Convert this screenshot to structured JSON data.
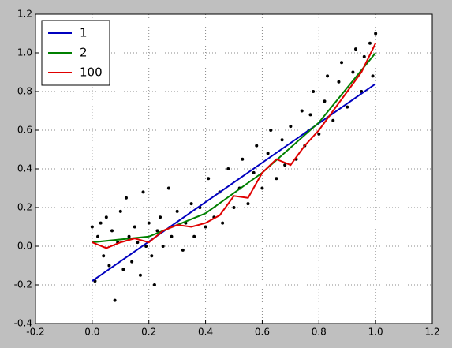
{
  "chart_data": {
    "type": "scatter",
    "xlim": [
      -0.2,
      1.2
    ],
    "xticks": [
      -0.2,
      {
        "value": 0,
        "label": "0.0"
      },
      0.2,
      0.4,
      0.6,
      0.8,
      {
        "value": 1,
        "label": "1.0"
      },
      1.2
    ],
    "ylim": [
      -0.4,
      1.2
    ],
    "yticks": [
      -0.4,
      -0.2,
      {
        "value": 0,
        "label": "0.0"
      },
      0.2,
      0.4,
      0.6,
      0.8,
      {
        "value": 1,
        "label": "1.0"
      },
      1.2
    ],
    "grid": true,
    "legend": "upper-left",
    "points": {
      "color": "#000000",
      "x": [
        0.0,
        0.01,
        0.02,
        0.03,
        0.04,
        0.05,
        0.06,
        0.07,
        0.08,
        0.09,
        0.1,
        0.11,
        0.12,
        0.13,
        0.14,
        0.15,
        0.16,
        0.17,
        0.18,
        0.19,
        0.2,
        0.21,
        0.22,
        0.23,
        0.24,
        0.25,
        0.27,
        0.28,
        0.3,
        0.32,
        0.33,
        0.35,
        0.36,
        0.38,
        0.4,
        0.41,
        0.43,
        0.45,
        0.46,
        0.48,
        0.5,
        0.52,
        0.53,
        0.55,
        0.57,
        0.58,
        0.6,
        0.62,
        0.63,
        0.65,
        0.67,
        0.68,
        0.7,
        0.72,
        0.74,
        0.75,
        0.77,
        0.78,
        0.8,
        0.82,
        0.83,
        0.85,
        0.87,
        0.88,
        0.9,
        0.92,
        0.93,
        0.95,
        0.96,
        0.98,
        0.99,
        1.0
      ],
      "values": [
        0.1,
        -0.18,
        0.05,
        0.12,
        -0.05,
        0.15,
        -0.1,
        0.08,
        -0.28,
        0.02,
        0.18,
        -0.12,
        0.25,
        0.05,
        -0.08,
        0.1,
        0.02,
        -0.15,
        0.28,
        0.0,
        0.12,
        -0.05,
        -0.2,
        0.08,
        0.15,
        0.0,
        0.3,
        0.05,
        0.18,
        -0.02,
        0.12,
        0.22,
        0.05,
        0.2,
        0.1,
        0.35,
        0.15,
        0.28,
        0.12,
        0.4,
        0.2,
        0.3,
        0.45,
        0.22,
        0.38,
        0.52,
        0.3,
        0.48,
        0.6,
        0.35,
        0.55,
        0.42,
        0.62,
        0.45,
        0.7,
        0.52,
        0.68,
        0.8,
        0.58,
        0.75,
        0.88,
        0.65,
        0.85,
        0.95,
        0.72,
        0.9,
        1.02,
        0.8,
        0.98,
        1.05,
        0.88,
        1.1
      ]
    },
    "series": [
      {
        "name": "1",
        "color": "#0000bf",
        "x": [
          0,
          1
        ],
        "values": [
          -0.18,
          0.84
        ]
      },
      {
        "name": "2",
        "color": "#008000",
        "x": [
          0,
          0.2,
          0.4,
          0.6,
          0.8,
          1
        ],
        "values": [
          0.02,
          0.05,
          0.17,
          0.38,
          0.64,
          1.0
        ]
      },
      {
        "name": "100",
        "color": "#e00000",
        "x": [
          0,
          0.05,
          0.1,
          0.15,
          0.2,
          0.25,
          0.3,
          0.35,
          0.4,
          0.45,
          0.5,
          0.55,
          0.6,
          0.65,
          0.7,
          0.75,
          0.8,
          0.85,
          0.9,
          0.95,
          1.0
        ],
        "values": [
          0.02,
          -0.01,
          0.02,
          0.04,
          0.02,
          0.08,
          0.11,
          0.1,
          0.12,
          0.16,
          0.26,
          0.25,
          0.38,
          0.45,
          0.42,
          0.52,
          0.6,
          0.7,
          0.8,
          0.9,
          1.05
        ]
      }
    ]
  }
}
